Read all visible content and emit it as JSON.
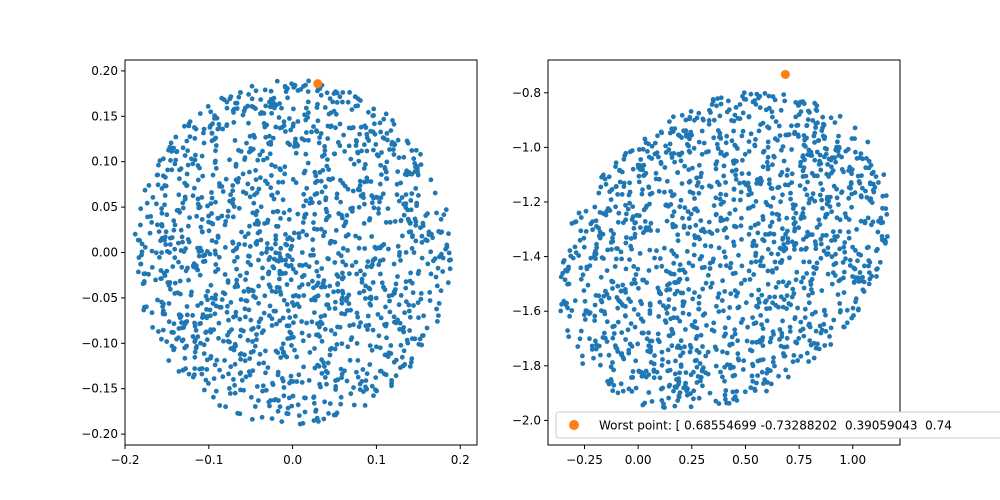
{
  "chart_data": [
    {
      "type": "scatter",
      "title": "",
      "xlabel": "",
      "ylabel": "",
      "xlim": [
        -0.2,
        0.22
      ],
      "ylim": [
        -0.212,
        0.212
      ],
      "xticks": [
        "−0.2",
        "−0.1",
        "0.0",
        "0.1",
        "0.2"
      ],
      "yticks": [
        "−0.20",
        "−0.15",
        "−0.10",
        "−0.05",
        "0.00",
        "0.05",
        "0.10",
        "0.15",
        "0.20"
      ],
      "xtick_values": [
        -0.2,
        -0.1,
        0.0,
        0.1,
        0.2
      ],
      "ytick_values": [
        -0.2,
        -0.15,
        -0.1,
        -0.05,
        0.0,
        0.05,
        0.1,
        0.15,
        0.2
      ],
      "grid": false,
      "series": [
        {
          "kind": "cloud",
          "color": "#1f77b4",
          "count": 1500,
          "distribution": "uniform disk",
          "center": [
            0.0,
            0.0
          ],
          "radius": [
            0.19,
            0.19
          ],
          "angle_deg": 0,
          "values": null
        },
        {
          "kind": "highlight",
          "color": "#ff7f0e",
          "values": [
            [
              0.03,
              0.186
            ]
          ]
        }
      ]
    },
    {
      "type": "scatter",
      "title": "",
      "xlabel": "",
      "ylabel": "",
      "xlim": [
        -0.42,
        1.22
      ],
      "ylim": [
        -2.09,
        -0.68
      ],
      "xticks": [
        "−0.25",
        "0.00",
        "0.25",
        "0.50",
        "0.75",
        "1.00"
      ],
      "yticks": [
        "−2.0",
        "−1.8",
        "−1.6",
        "−1.4",
        "−1.2",
        "−1.0",
        "−0.8"
      ],
      "xtick_values": [
        -0.25,
        0.0,
        0.25,
        0.5,
        0.75,
        1.0
      ],
      "ytick_values": [
        -2.0,
        -1.8,
        -1.6,
        -1.4,
        -1.2,
        -1.0,
        -0.8
      ],
      "grid": false,
      "legend": {
        "position": "lower-left",
        "entries": [
          {
            "label": "Worst point: [ 0.68554699 -0.73288202  0.39059043  0.74",
            "color": "#ff7f0e"
          }
        ]
      },
      "series": [
        {
          "kind": "cloud",
          "color": "#1f77b4",
          "count": 1500,
          "distribution": "uniform ellipse",
          "center": [
            0.4,
            -1.38
          ],
          "radius": [
            0.8,
            0.55
          ],
          "angle_deg": 20,
          "values": null
        },
        {
          "kind": "highlight",
          "color": "#ff7f0e",
          "values": [
            [
              0.686,
              -0.733
            ]
          ]
        }
      ]
    }
  ]
}
